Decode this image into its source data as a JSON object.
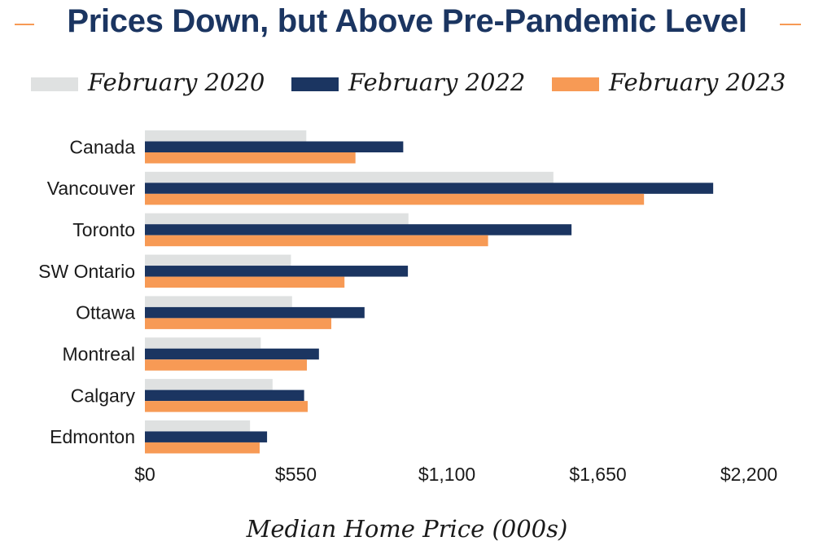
{
  "chart_data": {
    "type": "bar",
    "orientation": "horizontal",
    "title": "Prices Down, but Above Pre-Pandemic Level",
    "xlabel": "Median Home Price (000s)",
    "ylabel": "",
    "categories": [
      "Canada",
      "Vancouver",
      "Toronto",
      "SW Ontario",
      "Ottawa",
      "Montreal",
      "Calgary",
      "Edmonton"
    ],
    "series": [
      {
        "name": "February 2020",
        "color": "#dfe1e1",
        "values": [
          588,
          1488,
          960,
          532,
          536,
          422,
          465,
          383
        ]
      },
      {
        "name": "February 2022",
        "color": "#1b3561",
        "values": [
          941,
          2070,
          1554,
          958,
          800,
          634,
          580,
          445
        ]
      },
      {
        "name": "February 2023",
        "color": "#f79a55",
        "values": [
          767,
          1818,
          1250,
          727,
          679,
          590,
          593,
          418
        ]
      }
    ],
    "xlim": [
      0,
      2200
    ],
    "xticks": [
      0,
      550,
      1100,
      1650,
      2200
    ],
    "xtick_labels": [
      "$0",
      "$550",
      "$1,100",
      "$1,650",
      "$2,200"
    ],
    "grid": false,
    "legend_position": "top"
  }
}
